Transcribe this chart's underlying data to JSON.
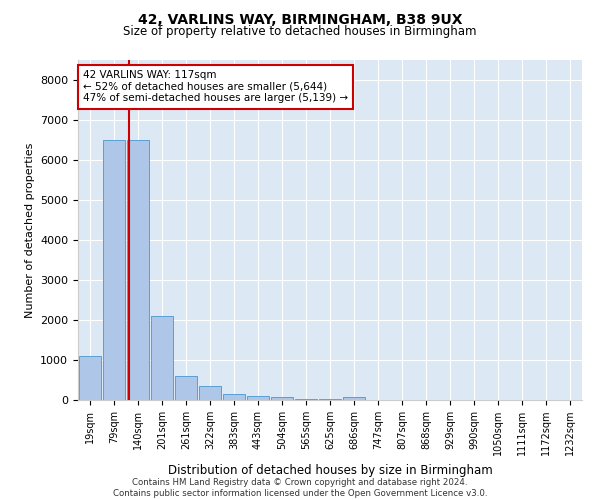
{
  "title1": "42, VARLINS WAY, BIRMINGHAM, B38 9UX",
  "title2": "Size of property relative to detached houses in Birmingham",
  "xlabel": "Distribution of detached houses by size in Birmingham",
  "ylabel": "Number of detached properties",
  "bar_labels": [
    "19sqm",
    "79sqm",
    "140sqm",
    "201sqm",
    "261sqm",
    "322sqm",
    "383sqm",
    "443sqm",
    "504sqm",
    "565sqm",
    "625sqm",
    "686sqm",
    "747sqm",
    "807sqm",
    "868sqm",
    "929sqm",
    "990sqm",
    "1050sqm",
    "1111sqm",
    "1172sqm",
    "1232sqm"
  ],
  "bar_values": [
    1100,
    6500,
    6500,
    2100,
    600,
    350,
    150,
    100,
    80,
    30,
    15,
    80,
    5,
    2,
    1,
    1,
    1,
    1,
    0,
    0,
    0
  ],
  "bar_color": "#aec6e8",
  "bar_edge_color": "#5a9fd4",
  "property_sqm": 117,
  "annotation_line1": "42 VARLINS WAY: 117sqm",
  "annotation_line2": "← 52% of detached houses are smaller (5,644)",
  "annotation_line3": "47% of semi-detached houses are larger (5,139) →",
  "annotation_box_color": "#ffffff",
  "annotation_box_edge": "#cc0000",
  "line_color": "#cc0000",
  "ylim": [
    0,
    8500
  ],
  "yticks": [
    0,
    1000,
    2000,
    3000,
    4000,
    5000,
    6000,
    7000,
    8000
  ],
  "footer1": "Contains HM Land Registry data © Crown copyright and database right 2024.",
  "footer2": "Contains public sector information licensed under the Open Government Licence v3.0.",
  "plot_bg_color": "#dde8f5"
}
